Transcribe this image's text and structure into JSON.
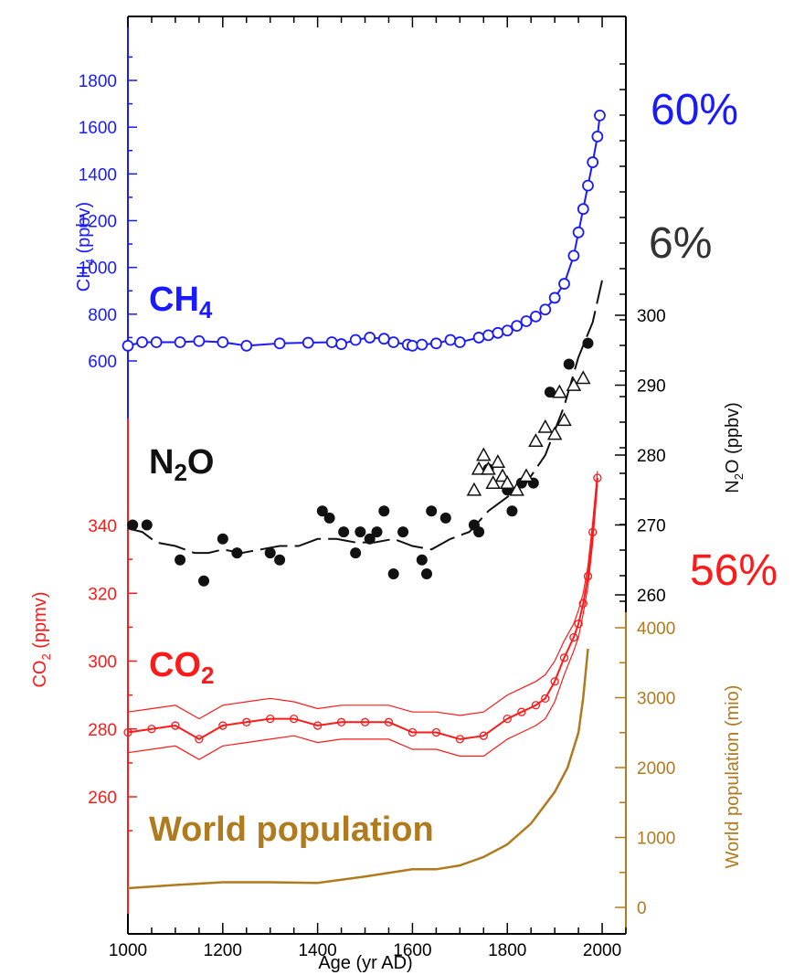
{
  "colors": {
    "ch4": "#1a1aff",
    "n2o": "#111111",
    "co2": "#ff1a1a",
    "population": "#b07a1e",
    "frame": "#000000"
  },
  "chart_data": {
    "type": "line",
    "x_axis": {
      "label": "Age (yr AD)",
      "range": [
        1000,
        2050
      ],
      "ticks": [
        1000,
        1200,
        1400,
        1600,
        1800,
        2000
      ]
    },
    "panels": [
      {
        "name": "CH4",
        "label_main": "CH",
        "label_sub": "4",
        "y_axis_label": "CH4 (ppbv)",
        "y_axis_label_main": "CH",
        "y_axis_label_sub": "4",
        "y_axis_label_unit": " (ppbv)",
        "y_axis_side": "left",
        "y_ticks": [
          600,
          800,
          1000,
          1200,
          1400,
          1600,
          1800
        ],
        "change_label": "60%",
        "series": {
          "markers": "open-circle",
          "x": [
            1000,
            1030,
            1060,
            1110,
            1150,
            1200,
            1250,
            1320,
            1380,
            1430,
            1450,
            1480,
            1510,
            1540,
            1560,
            1590,
            1600,
            1620,
            1650,
            1680,
            1700,
            1740,
            1760,
            1780,
            1800,
            1820,
            1840,
            1860,
            1880,
            1900,
            1920,
            1940,
            1950,
            1960,
            1970,
            1980,
            1990,
            1995
          ],
          "y": [
            665,
            680,
            680,
            680,
            685,
            680,
            665,
            675,
            678,
            680,
            672,
            690,
            700,
            695,
            680,
            670,
            665,
            670,
            675,
            690,
            680,
            700,
            710,
            720,
            730,
            750,
            770,
            790,
            820,
            870,
            930,
            1050,
            1150,
            1250,
            1350,
            1450,
            1560,
            1650
          ]
        }
      },
      {
        "name": "N2O",
        "label_main": "N",
        "label_sub": "2",
        "label_tail": "O",
        "y_axis_label": "N2O (ppbv)",
        "y_axis_label_main": "N",
        "y_axis_label_sub": "2",
        "y_axis_label_unit": "O (ppbv)",
        "y_axis_side": "right",
        "y_ticks": [
          260,
          270,
          280,
          290,
          300
        ],
        "change_label": "6%",
        "series_dots": {
          "markers": "filled-circle",
          "x": [
            1010,
            1040,
            1110,
            1160,
            1200,
            1230,
            1300,
            1320,
            1410,
            1425,
            1455,
            1480,
            1490,
            1510,
            1525,
            1540,
            1560,
            1580,
            1620,
            1630,
            1640,
            1670,
            1730,
            1740,
            1760,
            1800,
            1810,
            1830,
            1855,
            1890,
            1930,
            1970
          ],
          "y": [
            270,
            270,
            265,
            262,
            268,
            266,
            266,
            265,
            272,
            271,
            269,
            266,
            269,
            268,
            269,
            272,
            263,
            269,
            265,
            263,
            272,
            271,
            270,
            269,
            278,
            275,
            272,
            276,
            276,
            289,
            293,
            296
          ]
        },
        "series_triangles": {
          "markers": "open-triangle",
          "x": [
            1730,
            1740,
            1750,
            1760,
            1770,
            1780,
            1790,
            1800,
            1820,
            1840,
            1860,
            1880,
            1900,
            1910,
            1920,
            1940,
            1960
          ],
          "y": [
            275,
            278,
            280,
            278,
            276,
            279,
            277,
            276,
            275,
            277,
            282,
            284,
            283,
            289,
            285,
            290,
            291
          ]
        },
        "series_line": {
          "x": [
            1000,
            1030,
            1060,
            1100,
            1140,
            1170,
            1200,
            1240,
            1280,
            1320,
            1360,
            1400,
            1440,
            1480,
            1520,
            1560,
            1600,
            1640,
            1680,
            1720,
            1760,
            1800,
            1840,
            1880,
            1920,
            1950,
            1980,
            2000
          ],
          "y": [
            269.5,
            269,
            267.5,
            267,
            266,
            266,
            266.5,
            266,
            266.5,
            267,
            267,
            268,
            268,
            267.5,
            267.5,
            268,
            267,
            266.5,
            268,
            269,
            272,
            274,
            276,
            280,
            287,
            294,
            299,
            305
          ]
        }
      },
      {
        "name": "CO2",
        "label_main": "CO",
        "label_sub": "2",
        "y_axis_label": "CO2 (ppmv)",
        "y_axis_label_main": "CO",
        "y_axis_label_sub": "2",
        "y_axis_label_unit": " (ppmv)",
        "y_axis_side": "left",
        "y_ticks": [
          260,
          280,
          300,
          320,
          340
        ],
        "change_label": "56%",
        "series": {
          "x": [
            1000,
            1050,
            1100,
            1150,
            1200,
            1250,
            1300,
            1350,
            1400,
            1450,
            1500,
            1550,
            1600,
            1650,
            1700,
            1750,
            1800,
            1830,
            1860,
            1880,
            1900,
            1920,
            1940,
            1950,
            1960,
            1970,
            1980,
            1990
          ],
          "y": [
            279,
            280,
            281,
            277,
            281,
            282,
            283,
            283,
            281,
            282,
            282,
            282,
            279,
            279,
            277,
            278,
            283,
            285,
            287,
            289,
            294,
            301,
            307,
            311,
            317,
            325,
            338,
            354
          ]
        },
        "band_upper": [
          285,
          286,
          287,
          283,
          287,
          288,
          289,
          288,
          286,
          287,
          287,
          287,
          285,
          285,
          284,
          285,
          290,
          292,
          294,
          296,
          300,
          306,
          311,
          315,
          320,
          328,
          341,
          356
        ],
        "band_lower": [
          273,
          274,
          275,
          271,
          275,
          276,
          277,
          278,
          276,
          277,
          277,
          277,
          274,
          274,
          272,
          272,
          277,
          279,
          281,
          283,
          288,
          296,
          303,
          307,
          314,
          322,
          335,
          352
        ]
      },
      {
        "name": "World population",
        "label": "World population",
        "y_axis_label": "World population (mio)",
        "y_axis_side": "right",
        "y_ticks": [
          0,
          1000,
          2000,
          3000,
          4000
        ],
        "series": {
          "x": [
            1000,
            1100,
            1200,
            1300,
            1400,
            1500,
            1600,
            1650,
            1700,
            1750,
            1800,
            1850,
            1900,
            1927,
            1950,
            1960,
            1970
          ],
          "y": [
            275,
            320,
            360,
            360,
            350,
            440,
            545,
            545,
            600,
            720,
            900,
            1200,
            1650,
            2000,
            2500,
            3000,
            3700
          ]
        }
      }
    ]
  }
}
